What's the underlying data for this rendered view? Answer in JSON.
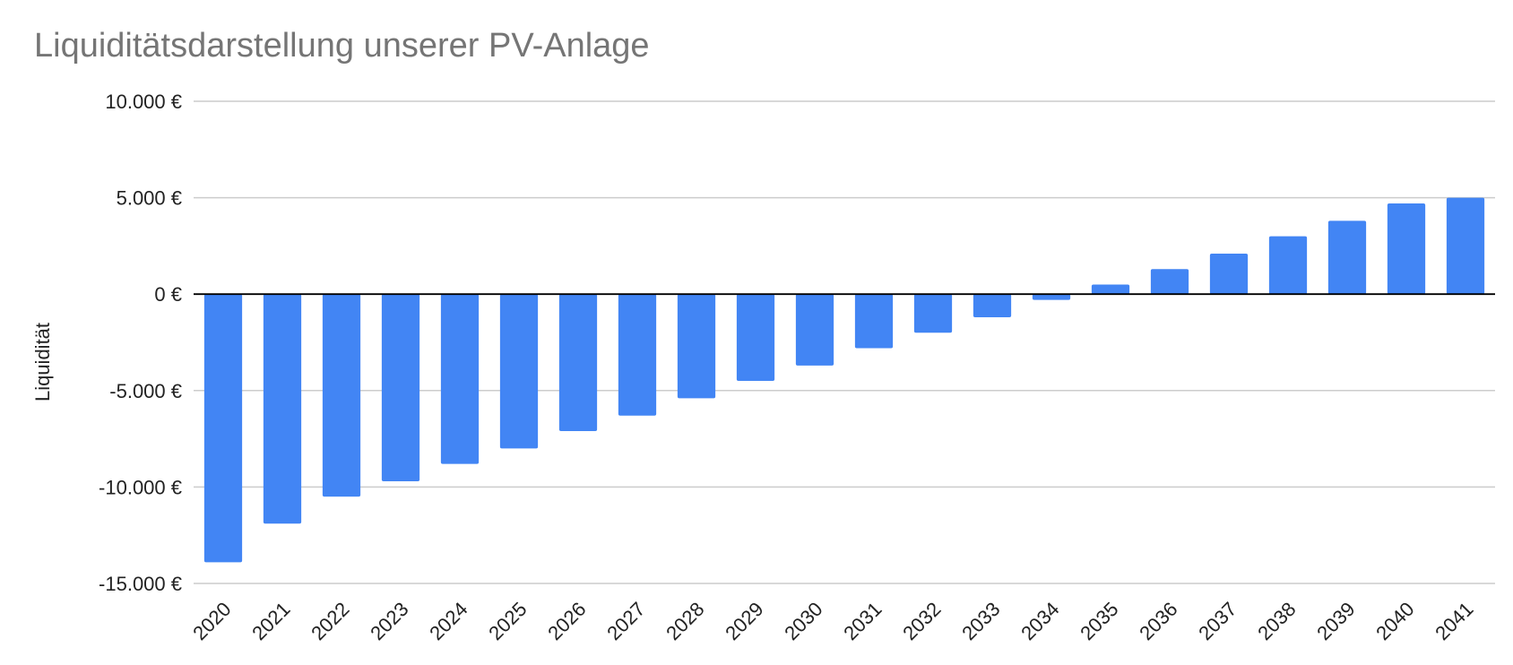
{
  "chart_data": {
    "type": "bar",
    "title": "Liquiditätsdarstellung unserer PV-Anlage",
    "xlabel": "",
    "ylabel": "Liquidität",
    "ylim": [
      -15000,
      10000
    ],
    "y_ticks": [
      10000,
      5000,
      0,
      -5000,
      -10000,
      -15000
    ],
    "y_tick_labels": [
      "10.000 €",
      "5.000 €",
      "0 €",
      "-5.000 €",
      "-10.000 €",
      "-15.000 €"
    ],
    "grid": true,
    "legend": "none",
    "categories": [
      "2020",
      "2021",
      "2022",
      "2023",
      "2024",
      "2025",
      "2026",
      "2027",
      "2028",
      "2029",
      "2030",
      "2031",
      "2032",
      "2033",
      "2034",
      "2035",
      "2036",
      "2037",
      "2038",
      "2039",
      "2040",
      "2041"
    ],
    "values": [
      -13900,
      -11900,
      -10500,
      -9700,
      -8800,
      -8000,
      -7100,
      -6300,
      -5400,
      -4500,
      -3700,
      -2800,
      -2000,
      -1200,
      -300,
      500,
      1300,
      2100,
      3000,
      3800,
      4700,
      5000
    ],
    "bar_color": "#4285f4",
    "grid_color": "#cccccc",
    "zero_line_color": "#000000"
  }
}
